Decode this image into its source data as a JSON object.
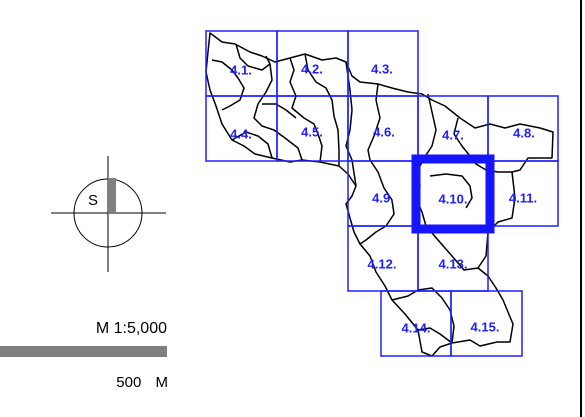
{
  "north_arrow": {
    "letter": "S"
  },
  "scale": {
    "ratio": "M 1:5,000",
    "distance": "500 M"
  },
  "tiles": [
    {
      "id": "4.1.",
      "selected": false
    },
    {
      "id": "4.2.",
      "selected": false
    },
    {
      "id": "4.3.",
      "selected": false
    },
    {
      "id": "4.4.",
      "selected": false
    },
    {
      "id": "4.5.",
      "selected": false
    },
    {
      "id": "4.6.",
      "selected": false
    },
    {
      "id": "4.7.",
      "selected": false
    },
    {
      "id": "4.8.",
      "selected": false
    },
    {
      "id": "4.9.",
      "selected": false
    },
    {
      "id": "4.10.",
      "selected": true
    },
    {
      "id": "4.11.",
      "selected": false
    },
    {
      "id": "4.12.",
      "selected": false
    },
    {
      "id": "4.13.",
      "selected": false
    },
    {
      "id": "4.14.",
      "selected": false
    },
    {
      "id": "4.15.",
      "selected": false
    }
  ],
  "colors": {
    "tile_grid": "#2020ff",
    "selection": "#1515ff",
    "boundary": "#000000",
    "scale_bar": "#808080"
  }
}
